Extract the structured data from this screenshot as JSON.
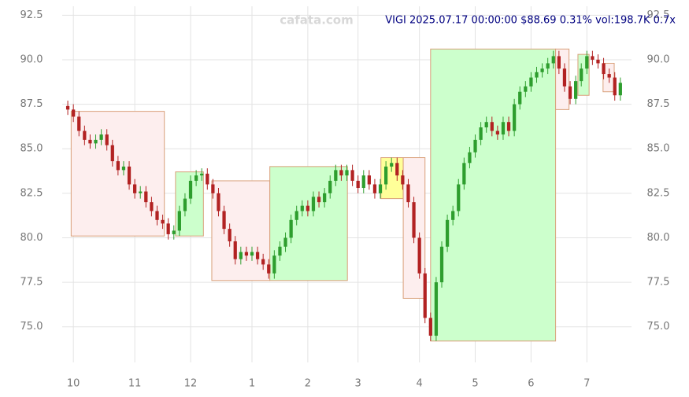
{
  "chart_data": {
    "type": "candlestick",
    "title": "VIGI 2025.07.17 00:00:00 $88.69 0.31% vol:198.7K 0.7x",
    "watermark": "cafata.com",
    "xlim": [
      -1,
      101
    ],
    "xticks": [
      {
        "value": 1,
        "label": "10"
      },
      {
        "value": 12,
        "label": "11"
      },
      {
        "value": 22,
        "label": "12"
      },
      {
        "value": 33,
        "label": "1"
      },
      {
        "value": 43,
        "label": "2"
      },
      {
        "value": 52,
        "label": "3"
      },
      {
        "value": 63,
        "label": "4"
      },
      {
        "value": 73,
        "label": "5"
      },
      {
        "value": 83,
        "label": "6"
      },
      {
        "value": 93,
        "label": "7"
      }
    ],
    "ylim": [
      73,
      93
    ],
    "yticks": [
      {
        "value": 75,
        "label": "75.0"
      },
      77.5,
      {
        "value": 80,
        "label": "80.0"
      },
      82.5,
      {
        "value": 85,
        "label": "85.0"
      },
      87.5,
      {
        "value": 90,
        "label": "90.0"
      },
      92.5
    ],
    "grid": true,
    "up_color": "#2e9e2e",
    "down_color": "#b22222",
    "open": [
      87.4,
      87.2,
      86.8,
      86.0,
      85.5,
      85.3,
      85.5,
      85.8,
      85.2,
      84.3,
      83.8,
      84.0,
      83.0,
      82.5,
      82.6,
      82.0,
      81.5,
      81.0,
      80.8,
      80.2,
      80.4,
      81.5,
      82.2,
      83.2,
      83.5,
      83.6,
      83.0,
      82.5,
      81.5,
      80.5,
      79.8,
      78.8,
      79.2,
      79.0,
      79.2,
      78.8,
      78.5,
      78.0,
      79.0,
      79.5,
      80.0,
      81.0,
      81.5,
      81.8,
      81.5,
      82.3,
      82.0,
      82.5,
      83.2,
      83.8,
      83.5,
      83.8,
      83.2,
      82.8,
      83.5,
      83.0,
      82.5,
      83.0,
      84.0,
      84.2,
      83.5,
      83.0,
      82.0,
      80.0,
      78.0,
      75.5,
      74.5,
      77.5,
      79.5,
      81.0,
      81.5,
      83.0,
      84.2,
      84.8,
      85.5,
      86.2,
      86.5,
      86.0,
      85.8,
      86.5,
      86.0,
      87.5,
      88.2,
      88.5,
      89.0,
      89.3,
      89.5,
      89.8,
      90.2,
      89.5,
      88.5,
      87.8,
      88.8,
      89.5,
      90.2,
      90.0,
      89.8,
      89.2,
      89.0,
      88.0
    ],
    "high": [
      87.7,
      87.5,
      87.1,
      86.3,
      85.8,
      85.8,
      86.1,
      86.1,
      85.5,
      84.6,
      84.3,
      84.3,
      83.3,
      82.9,
      82.9,
      82.3,
      81.8,
      81.3,
      81.1,
      80.7,
      81.8,
      82.5,
      83.5,
      83.8,
      83.9,
      83.9,
      83.3,
      82.8,
      81.8,
      80.8,
      80.1,
      79.5,
      79.5,
      79.5,
      79.5,
      79.1,
      78.8,
      79.3,
      79.8,
      80.3,
      81.3,
      81.8,
      82.1,
      82.1,
      82.6,
      82.6,
      82.8,
      83.5,
      84.1,
      84.1,
      84.1,
      84.1,
      83.5,
      83.8,
      83.8,
      83.3,
      83.3,
      84.3,
      84.5,
      84.5,
      83.8,
      83.3,
      82.3,
      80.3,
      78.3,
      75.8,
      77.8,
      79.8,
      81.3,
      81.8,
      83.3,
      84.5,
      85.1,
      85.8,
      86.5,
      86.8,
      86.8,
      86.3,
      86.8,
      86.8,
      87.8,
      88.5,
      88.8,
      89.3,
      89.6,
      89.8,
      90.1,
      90.5,
      90.5,
      89.8,
      88.8,
      89.1,
      89.8,
      90.5,
      90.5,
      90.3,
      90.1,
      89.5,
      89.3,
      89.0
    ],
    "low": [
      86.9,
      86.5,
      85.7,
      85.2,
      85.0,
      85.0,
      85.2,
      84.9,
      84.0,
      83.5,
      83.5,
      82.7,
      82.2,
      82.2,
      81.7,
      81.2,
      80.7,
      80.5,
      79.9,
      79.9,
      80.1,
      81.2,
      81.9,
      82.9,
      83.2,
      82.7,
      82.2,
      81.2,
      80.2,
      79.5,
      78.5,
      78.5,
      78.7,
      78.7,
      78.5,
      78.2,
      77.7,
      77.7,
      78.7,
      79.2,
      79.7,
      80.7,
      81.2,
      81.2,
      81.2,
      81.7,
      81.7,
      82.2,
      82.9,
      83.2,
      83.2,
      82.9,
      82.5,
      82.5,
      82.7,
      82.2,
      82.2,
      82.7,
      83.7,
      83.2,
      82.7,
      81.7,
      79.7,
      77.7,
      75.2,
      74.2,
      74.2,
      77.2,
      79.2,
      80.7,
      81.2,
      82.7,
      83.9,
      84.5,
      85.2,
      85.9,
      85.7,
      85.5,
      85.5,
      85.7,
      85.7,
      87.2,
      87.9,
      88.2,
      88.7,
      89.0,
      89.2,
      89.5,
      89.2,
      88.2,
      87.5,
      87.5,
      88.5,
      89.2,
      89.7,
      89.5,
      88.9,
      88.7,
      87.7,
      87.7
    ],
    "close": [
      87.2,
      86.8,
      86.0,
      85.5,
      85.3,
      85.5,
      85.8,
      85.2,
      84.3,
      83.8,
      84.0,
      83.0,
      82.5,
      82.6,
      82.0,
      81.5,
      81.0,
      80.8,
      80.2,
      80.4,
      81.5,
      82.2,
      83.2,
      83.5,
      83.6,
      83.0,
      82.5,
      81.5,
      80.5,
      79.8,
      78.8,
      79.2,
      79.0,
      79.2,
      78.8,
      78.5,
      78.0,
      79.0,
      79.5,
      80.0,
      81.0,
      81.5,
      81.8,
      81.5,
      82.3,
      82.0,
      82.5,
      83.2,
      83.8,
      83.5,
      83.8,
      83.2,
      82.8,
      83.5,
      83.0,
      82.5,
      83.0,
      84.0,
      84.2,
      83.5,
      83.0,
      82.0,
      80.0,
      78.0,
      75.5,
      74.5,
      77.5,
      79.5,
      81.0,
      81.5,
      83.0,
      84.2,
      84.8,
      85.5,
      86.2,
      86.5,
      86.0,
      85.8,
      86.5,
      86.0,
      87.5,
      88.2,
      88.5,
      89.0,
      89.3,
      89.5,
      89.8,
      90.2,
      89.5,
      88.5,
      87.8,
      88.8,
      89.5,
      90.2,
      90.0,
      89.8,
      89.2,
      89.0,
      88.0,
      88.7
    ],
    "zones": [
      {
        "x": [
          0.6,
          17.3
        ],
        "y": [
          80.1,
          87.1
        ],
        "color": "#fdeeee"
      },
      {
        "x": [
          19.3,
          24.3
        ],
        "y": [
          80.1,
          83.7
        ],
        "color": "#ccffcc"
      },
      {
        "x": [
          25.8,
          36.2
        ],
        "y": [
          77.6,
          83.2
        ],
        "color": "#fdeeee"
      },
      {
        "x": [
          36.2,
          50.1
        ],
        "y": [
          77.6,
          84.0
        ],
        "color": "#ccffcc"
      },
      {
        "x": [
          56.1,
          60.1
        ],
        "y": [
          82.2,
          84.5
        ],
        "color": "#ffff99"
      },
      {
        "x": [
          60.1,
          64.0
        ],
        "y": [
          76.6,
          84.5
        ],
        "color": "#fdeeee"
      },
      {
        "x": [
          65.0,
          87.4
        ],
        "y": [
          74.2,
          90.6
        ],
        "color": "#ccffcc"
      },
      {
        "x": [
          87.4,
          89.8
        ],
        "y": [
          87.2,
          90.6
        ],
        "color": "#fdeeee"
      },
      {
        "x": [
          91.4,
          93.4
        ],
        "y": [
          88.0,
          90.3
        ],
        "color": "#ccffcc"
      },
      {
        "x": [
          95.9,
          97.9
        ],
        "y": [
          88.2,
          89.8
        ],
        "color": "#fdeeee"
      }
    ]
  }
}
